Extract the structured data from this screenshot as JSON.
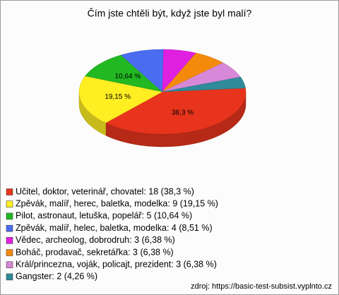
{
  "chart_data": {
    "type": "pie",
    "title": "Čím jste chtěli být, když jste byl malí?",
    "categories": [
      "Učitel, doktor, veterinář, chovatel",
      "Zpěvák, malíř, herec, baletka, modelka",
      "Pilot, astronaut, letuška, popelář",
      "Zpěvák, malíř, helec, baletka, modelka",
      "Vědec, archeolog, dobrodruh",
      "Boháč, prodavač, sekretářka",
      "Král/princezna, voják, policajt, prezident",
      "Gangster"
    ],
    "values": [
      18,
      9,
      5,
      4,
      3,
      3,
      3,
      2
    ],
    "value_labels": [
      "38,3 %",
      "19,15 %",
      "10,64 %",
      null,
      null,
      null,
      null,
      null
    ],
    "legend_labels": [
      "Učitel, doktor, veterinář, chovatel: 18 (38,3 %)",
      "Zpěvák, malíř, herec, baletka, modelka: 9 (19,15 %)",
      "Pilot, astronaut, letuška, popelář: 5 (10,64 %)",
      "Zpěvák, malíř, helec, baletka, modelka: 4 (8,51 %)",
      "Vědec, archeolog, dobrodruh: 3 (6,38 %)",
      "Boháč, prodavač, sekretářka: 3 (6,38 %)",
      "Král/princezna, voják, policajt, prezident: 3 (6,38 %)",
      "Gangster: 2 (4,26 %)"
    ],
    "colors": [
      "#e8341c",
      "#ffee22",
      "#22b822",
      "#4a6cf0",
      "#e020e0",
      "#f58a0a",
      "#d888d8",
      "#2f8a9a"
    ],
    "source": "zdroj: https://basic-test-subsist.vyplnto.cz"
  }
}
